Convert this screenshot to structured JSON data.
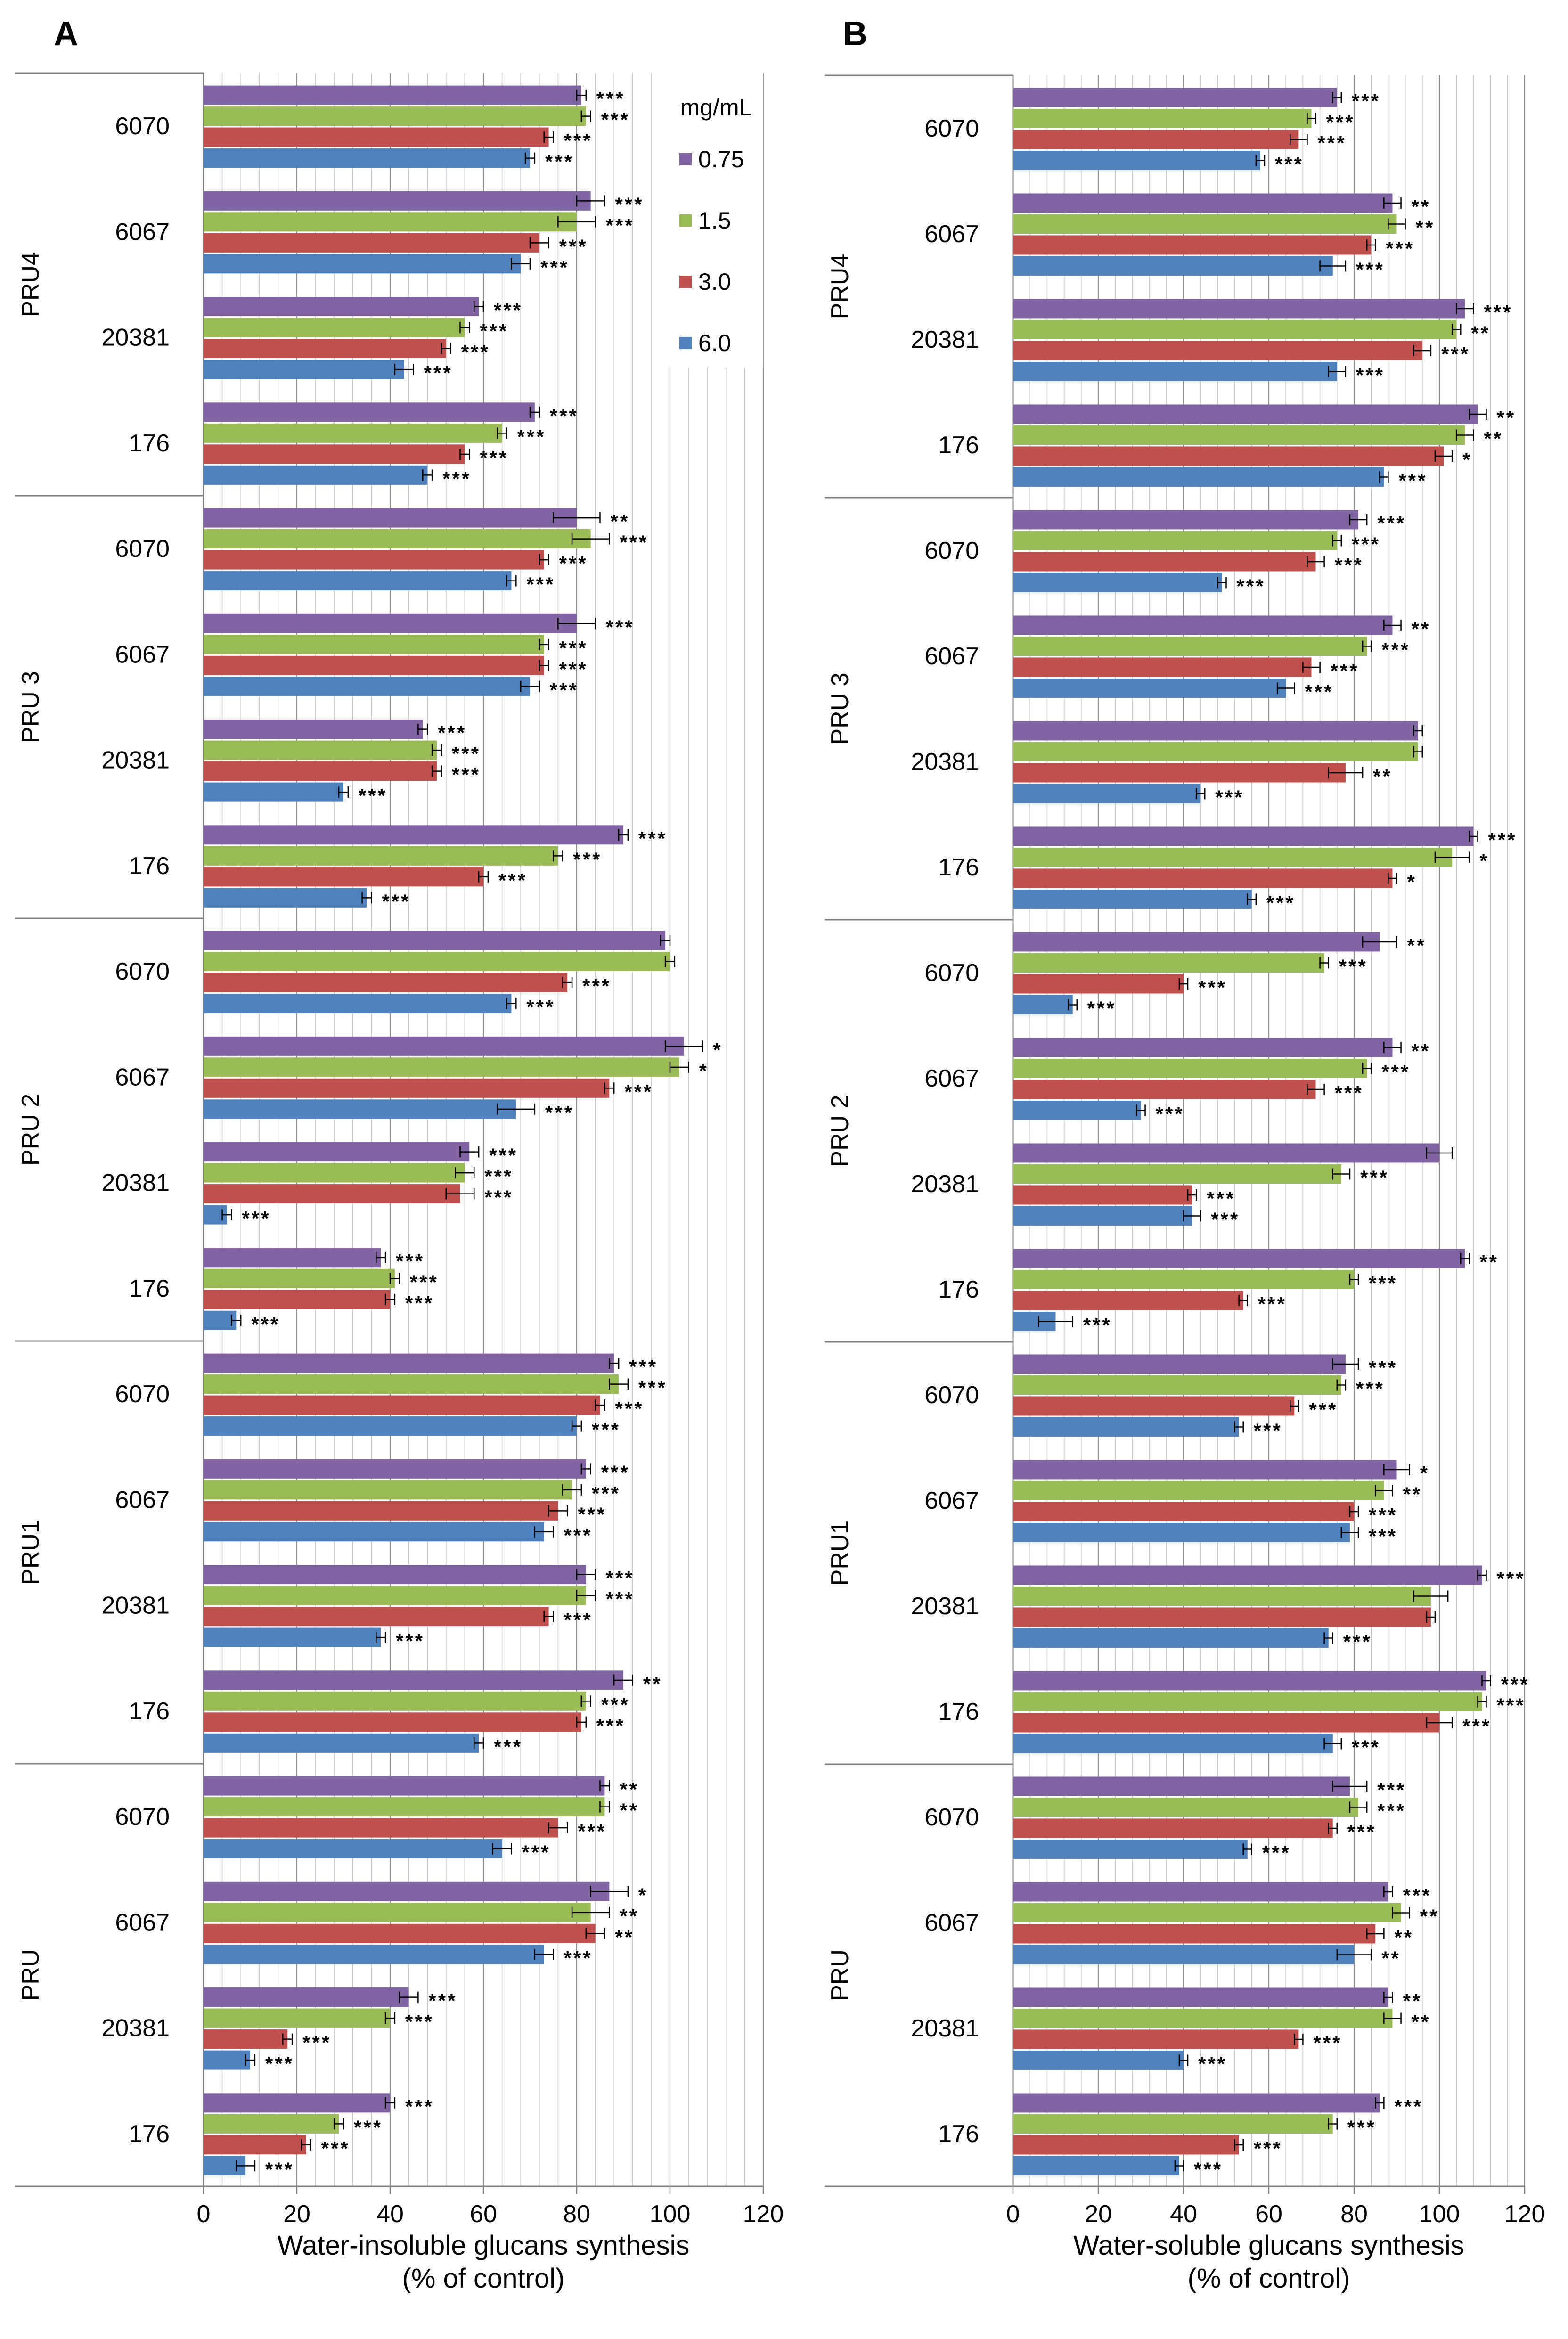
{
  "figure_labels": [
    "A",
    "B"
  ],
  "legend": {
    "title": "mg/mL",
    "entries": [
      {
        "label": "0.75",
        "color": "#8064A2"
      },
      {
        "label": "1.5",
        "color": "#9BBB59"
      },
      {
        "label": "3.0",
        "color": "#C0504D"
      },
      {
        "label": "6.0",
        "color": "#4F81BD"
      }
    ]
  },
  "chart_data": [
    {
      "panel": "A",
      "type": "bar",
      "orientation": "horizontal",
      "xlabel": "Water-insoluble  glucans synthesis",
      "xlabel2": "(% of  control)",
      "xlim": [
        0,
        120
      ],
      "xticks": [
        "0",
        "20",
        "40",
        "60",
        "80",
        "100",
        "120"
      ],
      "groups": [
        "PRU4",
        "PRU 3",
        "PRU 2",
        "PRU1",
        "PRU"
      ],
      "categories": [
        "6070",
        "6067",
        "20381",
        "176"
      ],
      "series_names": [
        "0.75",
        "1.5",
        "3.0",
        "6.0"
      ],
      "values": [
        [
          [
            81,
            82,
            74,
            70
          ],
          [
            83,
            80,
            72,
            68
          ],
          [
            59,
            56,
            52,
            43
          ],
          [
            71,
            64,
            56,
            48
          ]
        ],
        [
          [
            80,
            83,
            73,
            66
          ],
          [
            80,
            73,
            73,
            70
          ],
          [
            47,
            50,
            50,
            30
          ],
          [
            90,
            76,
            60,
            35
          ]
        ],
        [
          [
            99,
            100,
            78,
            66
          ],
          [
            103,
            102,
            87,
            67
          ],
          [
            57,
            56,
            55,
            5
          ],
          [
            38,
            41,
            40,
            7
          ]
        ],
        [
          [
            88,
            89,
            85,
            80
          ],
          [
            82,
            79,
            76,
            73
          ],
          [
            82,
            82,
            74,
            38
          ],
          [
            90,
            82,
            81,
            59
          ]
        ],
        [
          [
            86,
            86,
            76,
            64
          ],
          [
            87,
            83,
            84,
            73
          ],
          [
            44,
            40,
            18,
            10
          ],
          [
            40,
            29,
            22,
            9
          ]
        ]
      ],
      "errors": [
        [
          [
            1,
            1,
            1,
            1
          ],
          [
            3,
            4,
            2,
            2
          ],
          [
            1,
            1,
            1,
            2
          ],
          [
            1,
            1,
            1,
            1
          ]
        ],
        [
          [
            5,
            4,
            1,
            1
          ],
          [
            4,
            1,
            1,
            2
          ],
          [
            1,
            1,
            1,
            1
          ],
          [
            1,
            1,
            1,
            1
          ]
        ],
        [
          [
            1,
            1,
            1,
            1
          ],
          [
            4,
            2,
            1,
            4
          ],
          [
            2,
            2,
            3,
            1
          ],
          [
            1,
            1,
            1,
            1
          ]
        ],
        [
          [
            1,
            2,
            1,
            1
          ],
          [
            1,
            2,
            2,
            2
          ],
          [
            2,
            2,
            1,
            1
          ],
          [
            2,
            1,
            1,
            1
          ]
        ],
        [
          [
            1,
            1,
            2,
            2
          ],
          [
            4,
            4,
            2,
            2
          ],
          [
            2,
            1,
            1,
            1
          ],
          [
            1,
            1,
            1,
            2
          ]
        ]
      ],
      "significance": [
        [
          [
            "***",
            "***",
            "***",
            "***"
          ],
          [
            "***",
            "***",
            "***",
            "***"
          ],
          [
            "***",
            "***",
            "***",
            "***"
          ],
          [
            "***",
            "***",
            "***",
            "***"
          ]
        ],
        [
          [
            "**",
            "***",
            "***",
            "***"
          ],
          [
            "***",
            "***",
            "***",
            "***"
          ],
          [
            "***",
            "***",
            "***",
            "***"
          ],
          [
            "***",
            "***",
            "***",
            "***"
          ]
        ],
        [
          [
            "",
            "",
            "***",
            "***"
          ],
          [
            "*",
            "*",
            "***",
            "***"
          ],
          [
            "***",
            "***",
            "***",
            "***"
          ],
          [
            "***",
            "***",
            "***",
            "***"
          ]
        ],
        [
          [
            "***",
            "***",
            "***",
            "***"
          ],
          [
            "***",
            "***",
            "***",
            "***"
          ],
          [
            "***",
            "***",
            "***",
            "***"
          ],
          [
            "**",
            "***",
            "***",
            "***"
          ]
        ],
        [
          [
            "**",
            "**",
            "***",
            "***"
          ],
          [
            "*",
            "**",
            "**",
            "***"
          ],
          [
            "***",
            "***",
            "***",
            "***"
          ],
          [
            "***",
            "***",
            "***",
            "***"
          ]
        ]
      ]
    },
    {
      "panel": "B",
      "type": "bar",
      "orientation": "horizontal",
      "xlabel": "Water-soluble  glucans synthesis",
      "xlabel2": "(% of control)",
      "xlim": [
        0,
        120
      ],
      "xticks": [
        "0",
        "20",
        "40",
        "60",
        "80",
        "100",
        "120"
      ],
      "groups": [
        "PRU4",
        "PRU 3",
        "PRU 2",
        "PRU1",
        "PRU"
      ],
      "categories": [
        "6070",
        "6067",
        "20381",
        "176"
      ],
      "series_names": [
        "0.75",
        "1.5",
        "3.0",
        "6.0"
      ],
      "values": [
        [
          [
            76,
            70,
            67,
            58
          ],
          [
            89,
            90,
            84,
            75
          ],
          [
            106,
            104,
            96,
            76
          ],
          [
            109,
            106,
            101,
            87
          ]
        ],
        [
          [
            81,
            76,
            71,
            49
          ],
          [
            89,
            83,
            70,
            64
          ],
          [
            95,
            95,
            78,
            44
          ],
          [
            108,
            103,
            89,
            56
          ]
        ],
        [
          [
            86,
            73,
            40,
            14
          ],
          [
            89,
            83,
            71,
            30
          ],
          [
            100,
            77,
            42,
            42
          ],
          [
            106,
            80,
            54,
            10
          ]
        ],
        [
          [
            78,
            77,
            66,
            53
          ],
          [
            90,
            87,
            80,
            79
          ],
          [
            110,
            98,
            98,
            74
          ],
          [
            111,
            110,
            100,
            75
          ]
        ],
        [
          [
            79,
            81,
            75,
            55
          ],
          [
            88,
            91,
            85,
            80
          ],
          [
            88,
            89,
            67,
            40
          ],
          [
            86,
            75,
            53,
            39
          ]
        ]
      ],
      "errors": [
        [
          [
            1,
            1,
            2,
            1
          ],
          [
            2,
            2,
            1,
            3
          ],
          [
            2,
            1,
            2,
            2
          ],
          [
            2,
            2,
            2,
            1
          ]
        ],
        [
          [
            2,
            1,
            2,
            1
          ],
          [
            2,
            1,
            2,
            2
          ],
          [
            1,
            1,
            4,
            1
          ],
          [
            1,
            4,
            1,
            1
          ]
        ],
        [
          [
            4,
            1,
            1,
            1
          ],
          [
            2,
            1,
            2,
            1
          ],
          [
            3,
            2,
            1,
            2
          ],
          [
            1,
            1,
            1,
            4
          ]
        ],
        [
          [
            3,
            1,
            1,
            1
          ],
          [
            3,
            2,
            1,
            2
          ],
          [
            1,
            4,
            1,
            1
          ],
          [
            1,
            1,
            3,
            2
          ]
        ],
        [
          [
            4,
            2,
            1,
            1
          ],
          [
            1,
            2,
            2,
            4
          ],
          [
            1,
            2,
            1,
            1
          ],
          [
            1,
            1,
            1,
            1
          ]
        ]
      ],
      "significance": [
        [
          [
            "***",
            "***",
            "***",
            "***"
          ],
          [
            "**",
            "**",
            "***",
            "***"
          ],
          [
            "***",
            "**",
            "***",
            "***"
          ],
          [
            "**",
            "**",
            "*",
            "***"
          ]
        ],
        [
          [
            "***",
            "***",
            "***",
            "***"
          ],
          [
            "**",
            "***",
            "***",
            "***"
          ],
          [
            "",
            "",
            "**",
            "***"
          ],
          [
            "***",
            "*",
            "*",
            "***"
          ]
        ],
        [
          [
            "**",
            "***",
            "***",
            "***"
          ],
          [
            "**",
            "***",
            "***",
            "***"
          ],
          [
            "",
            "***",
            "***",
            "***"
          ],
          [
            "**",
            "***",
            "***",
            "***"
          ]
        ],
        [
          [
            "***",
            "***",
            "***",
            "***"
          ],
          [
            "*",
            "**",
            "***",
            "***"
          ],
          [
            "***",
            "",
            "",
            "***"
          ],
          [
            "***",
            "***",
            "***",
            "***"
          ]
        ],
        [
          [
            "***",
            "***",
            "***",
            "***"
          ],
          [
            "***",
            "**",
            "**",
            "**"
          ],
          [
            "**",
            "**",
            "***",
            "***"
          ],
          [
            "***",
            "***",
            "***",
            "***"
          ]
        ]
      ]
    }
  ]
}
